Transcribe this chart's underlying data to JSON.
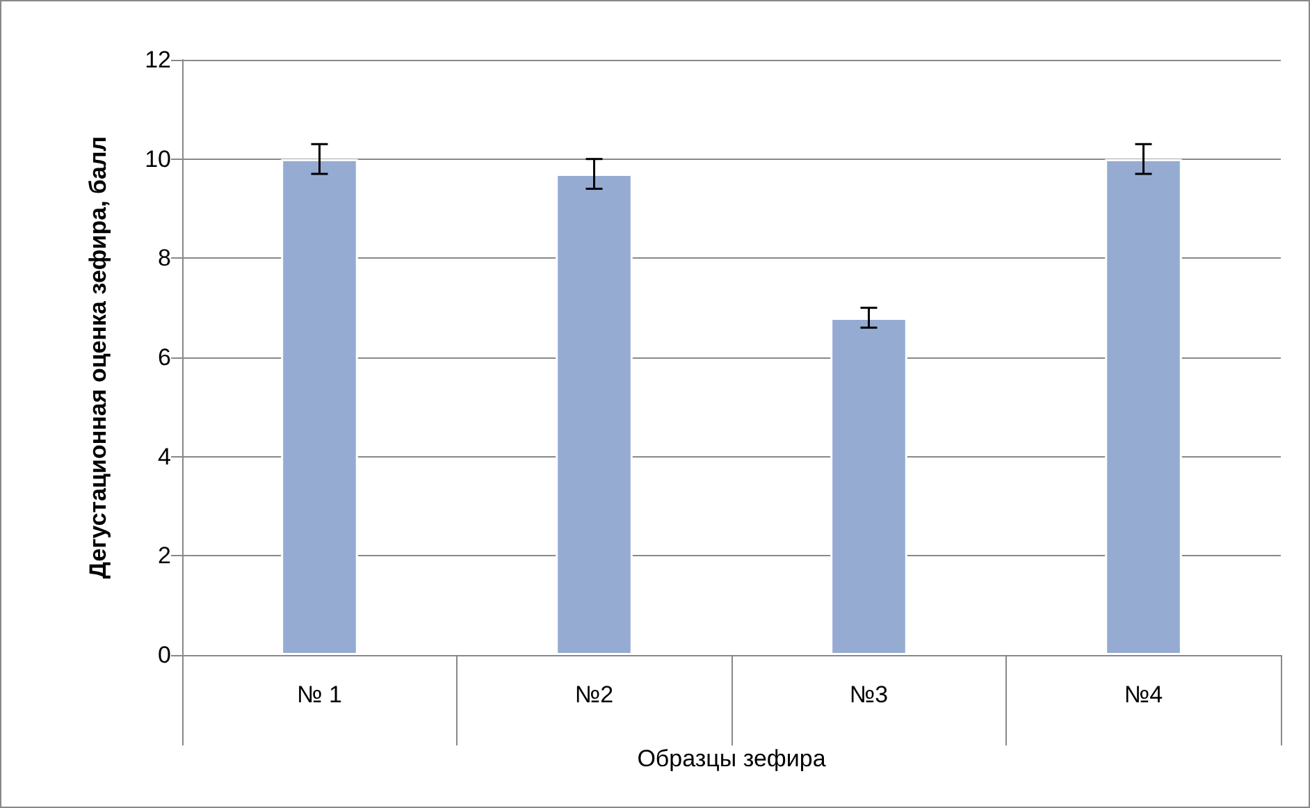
{
  "chart_data": {
    "type": "bar",
    "xlabel": "Образцы зефира",
    "ylabel": "Дегустационная оценка зефира, балл",
    "categories": [
      "№ 1",
      "№2",
      "№3",
      "№4"
    ],
    "values": [
      10,
      9.7,
      6.8,
      10
    ],
    "errors": [
      0.3,
      0.3,
      0.2,
      0.3
    ],
    "color": "#95abd2",
    "ylim": [
      0,
      12
    ],
    "yticks": [
      0,
      2,
      4,
      6,
      8,
      10,
      12
    ],
    "grid": "y"
  }
}
